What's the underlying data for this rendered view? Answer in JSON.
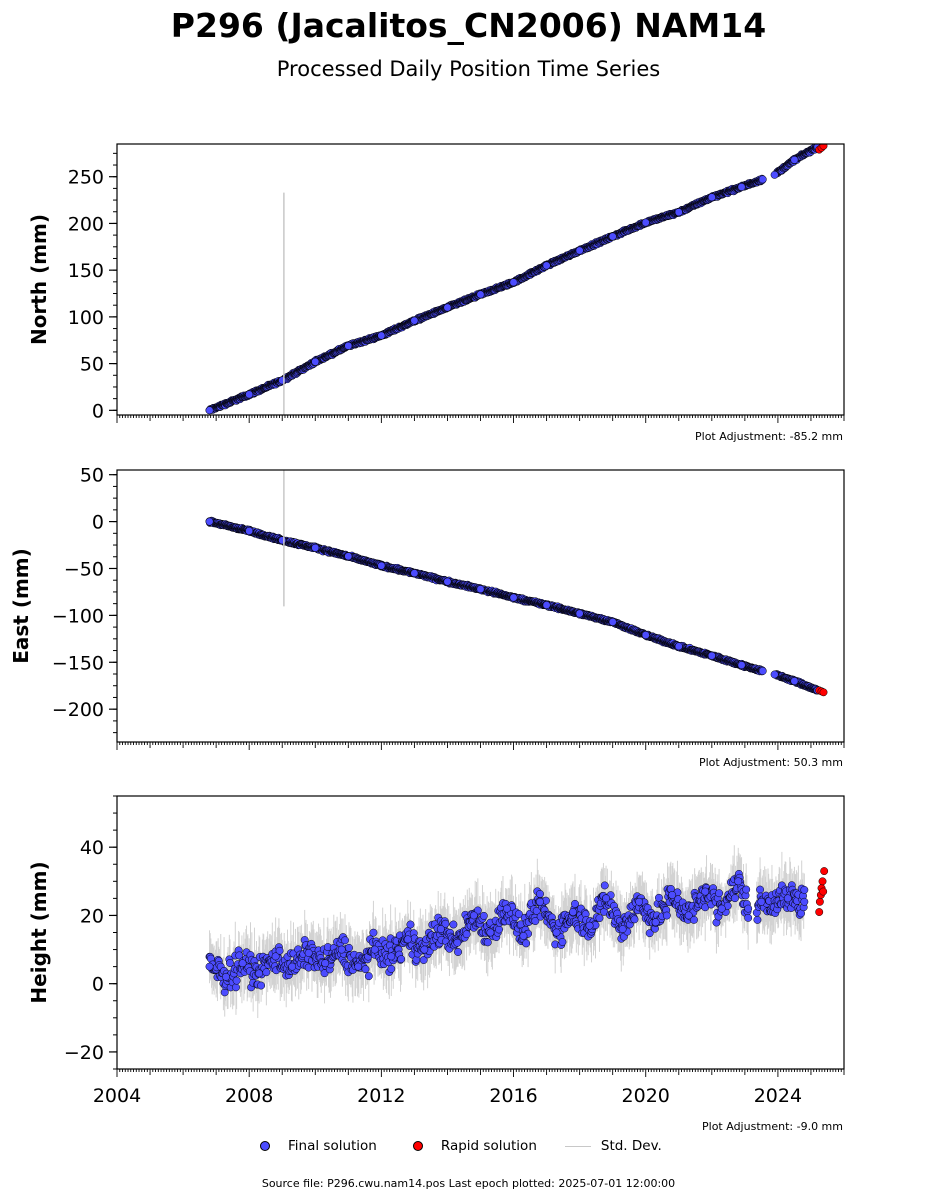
{
  "title": "P296 (Jacalitos_CN2006) NAM14",
  "subtitle": "Processed Daily Position Time Series",
  "source": "Source file: P296.cwu.nam14.pos  Last epoch plotted: 2025-07-01 12:00:00",
  "legend": {
    "final": "Final solution",
    "rapid": "Rapid solution",
    "std": "Std. Dev."
  },
  "colors": {
    "final": "#4c4cff",
    "rapid": "#ff0000",
    "std": "#c8c8c8",
    "edge": "#000000"
  },
  "chart_data": [
    {
      "type": "scatter",
      "ylabel": "North (mm)",
      "adjustment": "Plot Adjustment: -85.2 mm",
      "xlim": [
        2004,
        2026
      ],
      "ylim": [
        -5,
        285
      ],
      "yticks": [
        0,
        50,
        100,
        150,
        200,
        250
      ],
      "x": [
        2006.8,
        2008.0,
        2009.0,
        2010.0,
        2011.0,
        2012.0,
        2013.0,
        2014.0,
        2015.0,
        2016.0,
        2017.0,
        2018.0,
        2019.0,
        2020.0,
        2021.0,
        2022.0,
        2022.9,
        2023.9,
        2024.5,
        2025.2
      ],
      "y": [
        0,
        17,
        32,
        52,
        69,
        80,
        96,
        110,
        124,
        137,
        155,
        171,
        186,
        201,
        212,
        228,
        239,
        252,
        268,
        282
      ],
      "rapid": {
        "x": [
          2025.25,
          2025.32,
          2025.38
        ],
        "y": [
          279,
          281,
          283
        ]
      }
    },
    {
      "type": "scatter",
      "ylabel": "East (mm)",
      "adjustment": "Plot Adjustment: 50.3 mm",
      "xlim": [
        2004,
        2026
      ],
      "ylim": [
        -235,
        55
      ],
      "yticks": [
        50,
        0,
        -50,
        -100,
        -150,
        -200
      ],
      "x": [
        2006.8,
        2008.0,
        2009.0,
        2010.0,
        2011.0,
        2012.0,
        2013.0,
        2014.0,
        2015.0,
        2016.0,
        2017.0,
        2018.0,
        2019.0,
        2020.0,
        2021.0,
        2022.0,
        2022.9,
        2023.9,
        2024.5,
        2025.2
      ],
      "y": [
        0,
        -10,
        -20,
        -28,
        -37,
        -47,
        -55,
        -64,
        -72,
        -81,
        -89,
        -98,
        -107,
        -121,
        -133,
        -143,
        -153,
        -163,
        -170,
        -180
      ],
      "rapid": {
        "x": [
          2025.25,
          2025.32,
          2025.38
        ],
        "y": [
          -180,
          -181,
          -182
        ]
      }
    },
    {
      "type": "scatter",
      "ylabel": "Height (mm)",
      "adjustment": "Plot Adjustment: -9.0 mm",
      "xlim": [
        2004,
        2026
      ],
      "ylim": [
        -25,
        55
      ],
      "yticks": [
        -20,
        0,
        20,
        40
      ],
      "xticks": [
        2004,
        2008,
        2012,
        2016,
        2020,
        2024
      ],
      "x": [
        2006.8,
        2007.3,
        2007.8,
        2008.3,
        2008.8,
        2009.3,
        2009.8,
        2010.3,
        2010.8,
        2011.3,
        2011.8,
        2012.3,
        2012.8,
        2013.3,
        2013.8,
        2014.3,
        2014.8,
        2015.3,
        2015.8,
        2016.3,
        2016.8,
        2017.3,
        2017.8,
        2018.3,
        2018.8,
        2019.3,
        2019.8,
        2020.3,
        2020.8,
        2021.3,
        2021.8,
        2022.3,
        2022.8,
        2023.1,
        2023.5,
        2024.3,
        2024.8
      ],
      "y": [
        5,
        2,
        6,
        3,
        8,
        5,
        9,
        6,
        10,
        5,
        10,
        8,
        13,
        10,
        16,
        12,
        20,
        15,
        22,
        14,
        24,
        15,
        21,
        17,
        25,
        16,
        24,
        18,
        26,
        20,
        27,
        22,
        30,
        22,
        24,
        25,
        24
      ],
      "rapid": {
        "x": [
          2025.25,
          2025.27,
          2025.3,
          2025.32,
          2025.35,
          2025.37,
          2025.4
        ],
        "y": [
          21,
          24,
          26,
          28,
          30,
          27,
          33
        ]
      }
    }
  ]
}
